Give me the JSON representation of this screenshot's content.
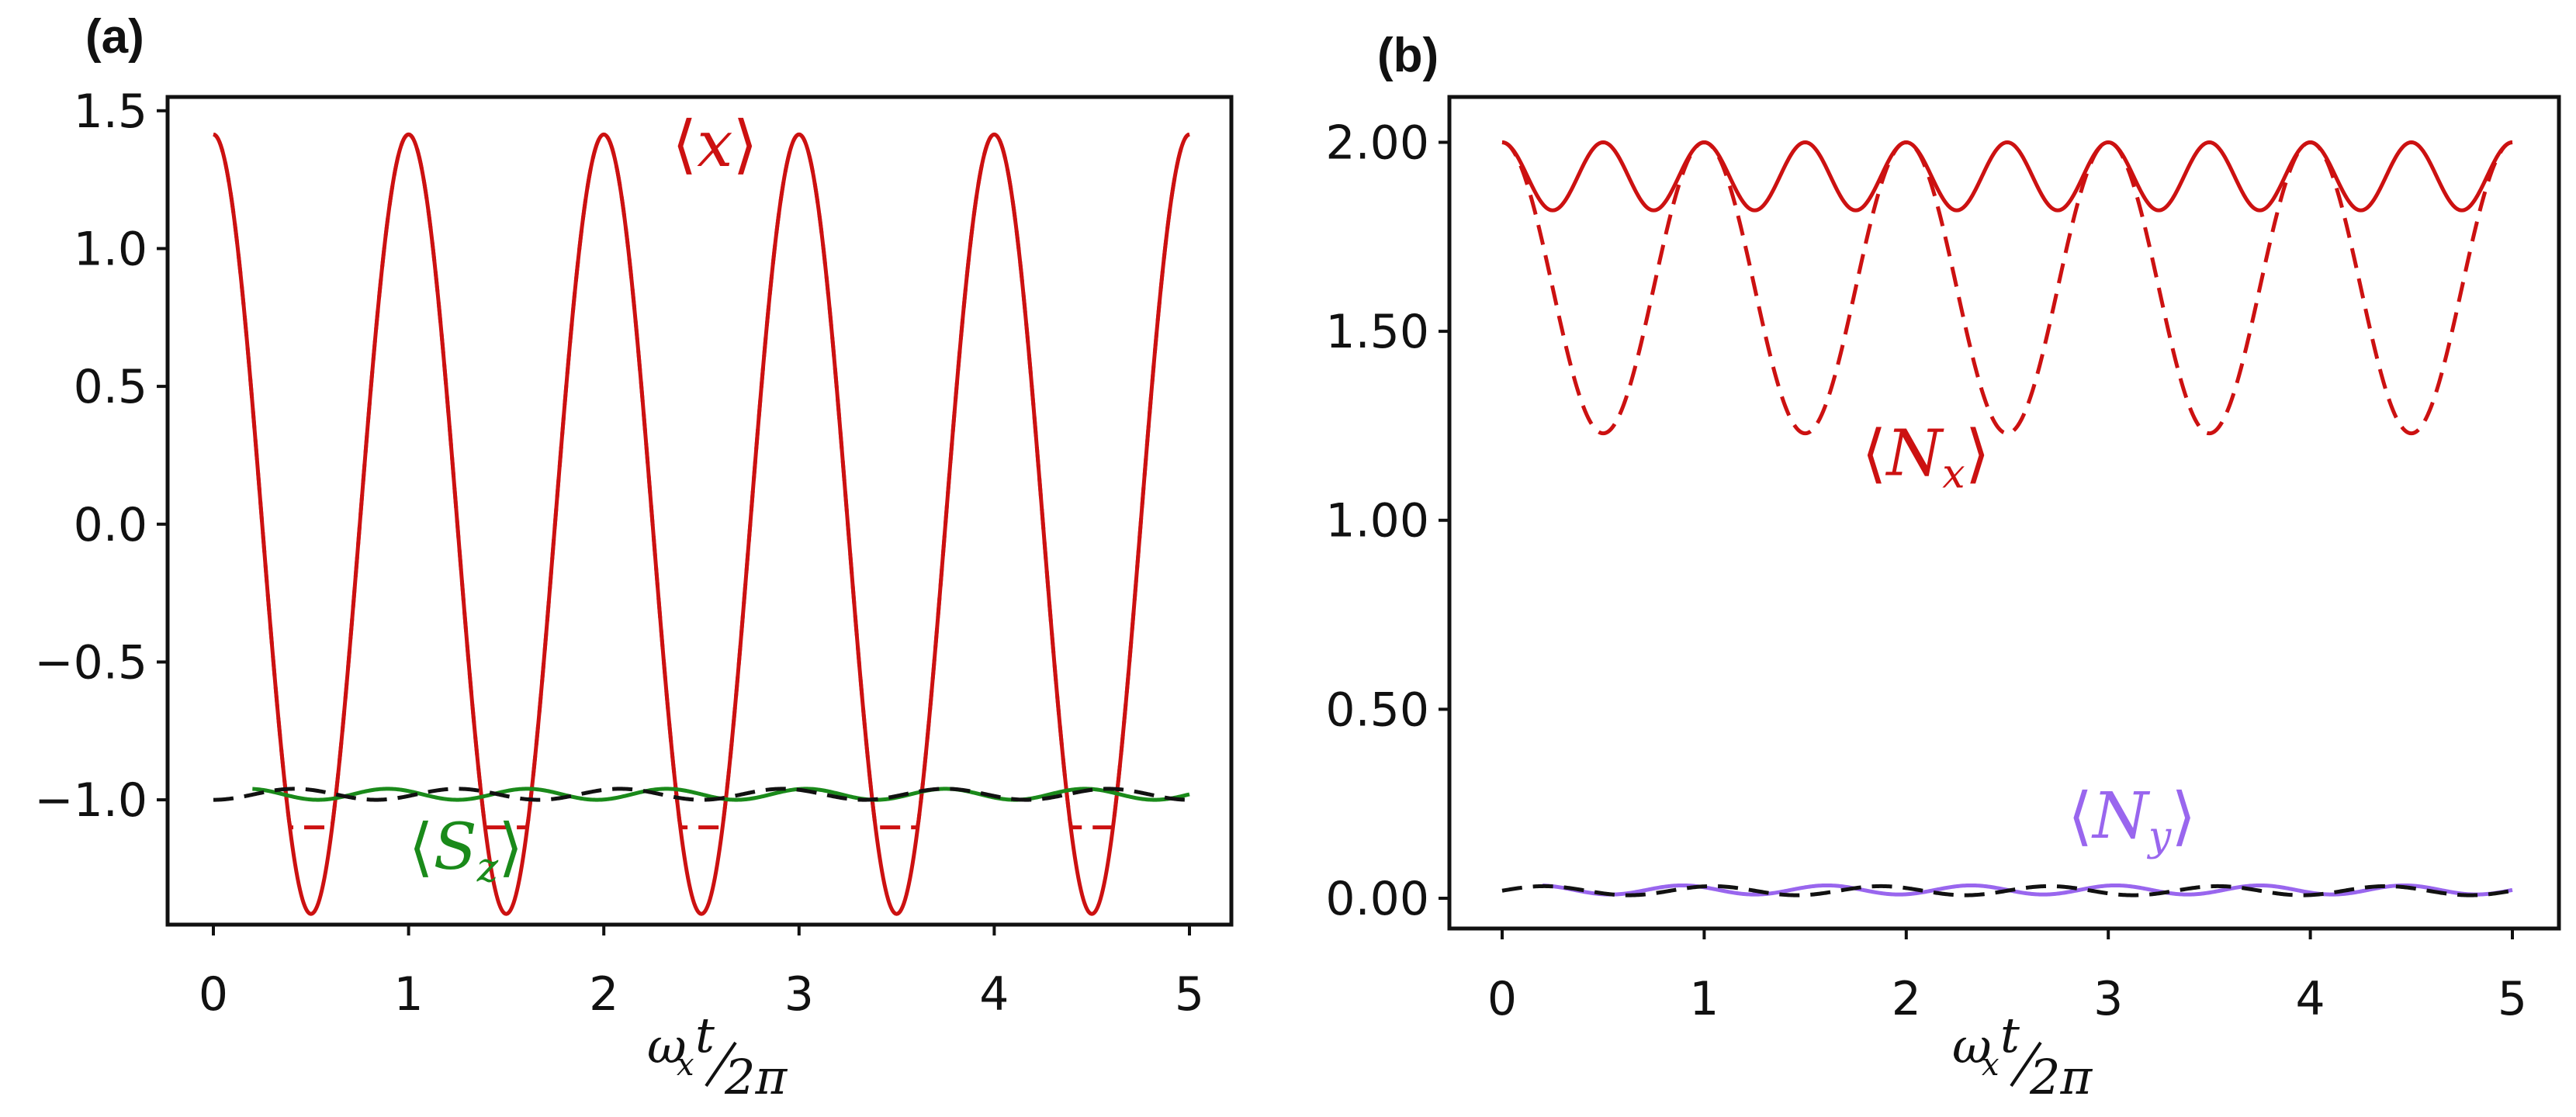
{
  "chart_data": [
    {
      "type": "line",
      "panel_label": "(a)",
      "title": "",
      "xlabel": "ω_x t / 2π",
      "xlabel_parts": {
        "omega": "ω",
        "sub_x": "x",
        "t": "t",
        "num": "2π"
      },
      "ylabel": "",
      "xlim": [
        0,
        5
      ],
      "ylim": [
        -1.45,
        1.55
      ],
      "x_ticks": [
        0,
        1,
        2,
        3,
        4,
        5
      ],
      "x_tick_labels": [
        "0",
        "1",
        "2",
        "3",
        "4",
        "5"
      ],
      "y_ticks": [
        1.5,
        1.0,
        0.5,
        0.0,
        -0.5,
        -1.0
      ],
      "y_tick_labels": [
        "1.5",
        "1.0",
        "0.5",
        "0.0",
        "−0.5",
        "−1.0"
      ],
      "grid": false,
      "annotations": [
        {
          "text": "⟨x⟩",
          "base": "x",
          "sub": "",
          "color": "#cc1111",
          "x": 2.35,
          "y": 1.3
        },
        {
          "text": "⟨S_z⟩",
          "base": "S",
          "sub": "z",
          "color": "#1a8a1a",
          "x": 1.0,
          "y": -1.25
        }
      ],
      "series": [
        {
          "name": "⟨x⟩ solid",
          "color": "#cc1111",
          "style": "solid",
          "formula": "A*cos(2*pi*x)",
          "amplitude": 1.414,
          "x_range": [
            0,
            5
          ]
        },
        {
          "name": "⟨x⟩ dashed",
          "color": "#cc1111",
          "style": "dashed",
          "formula": "A*cos(2*pi*x) clipped at min",
          "amplitude": 1.414,
          "min": -1.1,
          "x_range": [
            0,
            5
          ]
        },
        {
          "name": "⟨S_z⟩ solid",
          "color": "#1a8a1a",
          "style": "solid",
          "formula": "-0.98 + 0.02*sin(2*pi*1.4*x)",
          "x_range": [
            0.2,
            5
          ]
        },
        {
          "name": "⟨S_z⟩ dashed",
          "color": "#111111",
          "style": "dashed",
          "formula": "-0.98 - 0.02*cos(2*pi*1.2*x)",
          "x_range": [
            0,
            5
          ]
        }
      ]
    },
    {
      "type": "line",
      "panel_label": "(b)",
      "title": "",
      "xlabel": "ω_x t / 2π",
      "xlabel_parts": {
        "omega": "ω",
        "sub_x": "x",
        "t": "t",
        "num": "2π"
      },
      "ylabel": "",
      "xlim": [
        0,
        5
      ],
      "ylim": [
        -0.08,
        2.12
      ],
      "x_ticks": [
        0,
        1,
        2,
        3,
        4,
        5
      ],
      "x_tick_labels": [
        "0",
        "1",
        "2",
        "3",
        "4",
        "5"
      ],
      "y_ticks": [
        2.0,
        1.5,
        1.0,
        0.5,
        0.0
      ],
      "y_tick_labels": [
        "2.00",
        "1.50",
        "1.00",
        "0.50",
        "0.00"
      ],
      "grid": false,
      "annotations": [
        {
          "text": "⟨N_x⟩",
          "base": "N",
          "sub": "x",
          "color": "#cc1111",
          "x": 1.78,
          "y": 1.12
        },
        {
          "text": "⟨N_y⟩",
          "base": "N",
          "sub": "y",
          "color": "#9966ee",
          "x": 2.8,
          "y": 0.16
        }
      ],
      "series": [
        {
          "name": "⟨N_x⟩ solid",
          "color": "#cc1111",
          "style": "solid",
          "formula": "1.91 + 0.09*cos(4*pi*x)",
          "x_range": [
            0,
            5
          ]
        },
        {
          "name": "⟨N_x⟩ dashed",
          "color": "#cc1111",
          "style": "dashed",
          "formula": "1.615 + 0.385*cos(2*pi*x)",
          "x_range": [
            0,
            5
          ]
        },
        {
          "name": "⟨N_y⟩ solid",
          "color": "#9966ee",
          "style": "solid",
          "formula": "0.022 + 0.012*sin(2*pi*1.4*x)",
          "x_range": [
            0.2,
            5
          ]
        },
        {
          "name": "⟨N_y⟩ dashed",
          "color": "#111111",
          "style": "dashed",
          "formula": "0.02 + 0.012*sin(2*pi*1.2*x)",
          "x_range": [
            0,
            5
          ]
        }
      ]
    }
  ]
}
